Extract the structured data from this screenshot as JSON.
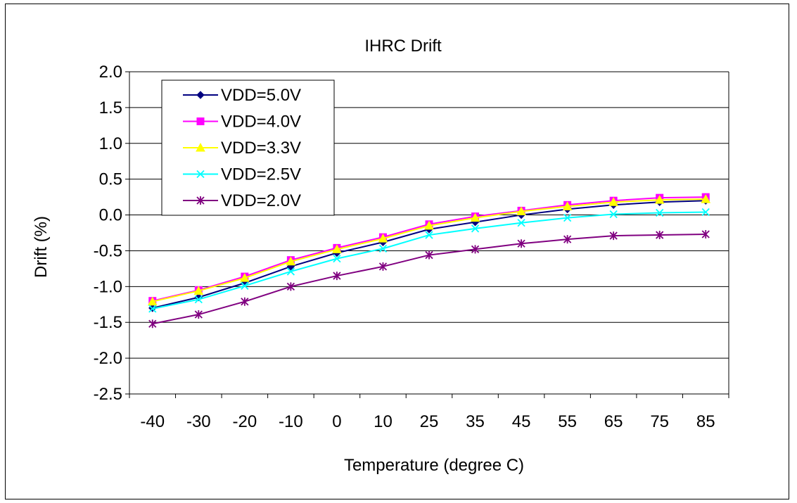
{
  "chart_data": {
    "type": "line",
    "title": "IHRC Drift",
    "xlabel": "Temperature (degree C)",
    "ylabel": "Drift (%)",
    "categories": [
      "-40",
      "-30",
      "-20",
      "-10",
      "0",
      "10",
      "25",
      "35",
      "45",
      "55",
      "65",
      "75",
      "85"
    ],
    "ylim": [
      -2.5,
      2.0
    ],
    "yticks": [
      "2.0",
      "1.5",
      "1.0",
      "0.5",
      "0.0",
      "-0.5",
      "-1.0",
      "-1.5",
      "-2.0",
      "-2.5"
    ],
    "grid": "horizontal",
    "legend_position": "top-left",
    "series": [
      {
        "name": "VDD=5.0V",
        "color": "#000080",
        "marker": "diamond",
        "values": [
          -1.3,
          -1.15,
          -0.95,
          -0.72,
          -0.53,
          -0.38,
          -0.2,
          -0.1,
          0.0,
          0.08,
          0.14,
          0.18,
          0.2
        ]
      },
      {
        "name": "VDD=4.0V",
        "color": "#ff00ff",
        "marker": "square",
        "values": [
          -1.2,
          -1.05,
          -0.86,
          -0.63,
          -0.46,
          -0.31,
          -0.13,
          -0.02,
          0.06,
          0.14,
          0.2,
          0.24,
          0.25
        ]
      },
      {
        "name": "VDD=3.3V",
        "color": "#ffff00",
        "marker": "triangle",
        "values": [
          -1.21,
          -1.06,
          -0.88,
          -0.65,
          -0.48,
          -0.33,
          -0.15,
          -0.04,
          0.05,
          0.12,
          0.18,
          0.21,
          0.22
        ]
      },
      {
        "name": "VDD=2.5V",
        "color": "#00ffff",
        "marker": "x",
        "values": [
          -1.31,
          -1.18,
          -0.99,
          -0.79,
          -0.61,
          -0.47,
          -0.28,
          -0.19,
          -0.11,
          -0.04,
          0.01,
          0.03,
          0.04
        ]
      },
      {
        "name": "VDD=2.0V",
        "color": "#800080",
        "marker": "star",
        "values": [
          -1.52,
          -1.39,
          -1.21,
          -1.0,
          -0.85,
          -0.72,
          -0.56,
          -0.48,
          -0.4,
          -0.34,
          -0.29,
          -0.28,
          -0.27
        ]
      }
    ]
  }
}
